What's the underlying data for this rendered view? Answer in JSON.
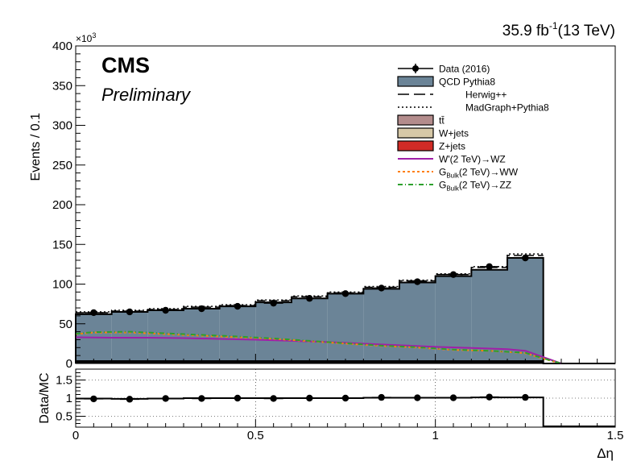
{
  "header": {
    "lumi_value": "35.9 fb",
    "lumi_exp": "-1",
    "energy": "(13 TeV)",
    "experiment": "CMS",
    "status": "Preliminary"
  },
  "chart_data": [
    {
      "type": "bar",
      "panel": "main",
      "title": "",
      "xlabel": "Δη",
      "ylabel": "Events / 0.1",
      "y_multiplier": "×10",
      "y_multiplier_exp": "3",
      "xlim": [
        0,
        1.5
      ],
      "ylim": [
        0,
        400000
      ],
      "x_ticks": [
        "0",
        "0.5",
        "1",
        "1.5"
      ],
      "y_ticks": [
        "0",
        "50",
        "100",
        "150",
        "200",
        "250",
        "300",
        "350",
        "400"
      ],
      "bin_edges": [
        0,
        0.1,
        0.2,
        0.3,
        0.4,
        0.5,
        0.6,
        0.7,
        0.8,
        0.9,
        1.0,
        1.1,
        1.2,
        1.3,
        1.4,
        1.5
      ],
      "legend_position": "top-right",
      "legend": [
        {
          "label": "Data (2016)",
          "style": "data"
        },
        {
          "label": "QCD Pythia8",
          "style": "fill",
          "color": "#6b8497"
        },
        {
          "label": "Herwig++",
          "style": "dash"
        },
        {
          "label": "MadGraph+Pythia8",
          "style": "dot"
        },
        {
          "label_main": "t",
          "label_sup": "t̄",
          "label": "tt̄",
          "style": "fill",
          "color": "#b38c8c"
        },
        {
          "label": "W+jets",
          "style": "fill",
          "color": "#d6c8a7"
        },
        {
          "label": "Z+jets",
          "style": "fill",
          "color": "#d12b26"
        },
        {
          "label": "W'(2 TeV)→WZ",
          "style": "line",
          "color": "#a01fa8"
        },
        {
          "label_main": "G",
          "label_sub": "Bulk",
          "label_rest": "(2 TeV)→WW",
          "label": "G_Bulk(2 TeV)→WW",
          "style": "dotted",
          "color": "#ff7f0e"
        },
        {
          "label_main": "G",
          "label_sub": "Bulk",
          "label_rest": "(2 TeV)→ZZ",
          "label": "G_Bulk(2 TeV)→ZZ",
          "style": "dashdot",
          "color": "#2ca02c"
        }
      ],
      "series": [
        {
          "name": "QCD Pythia8",
          "values": [
            62000,
            65000,
            67000,
            69000,
            72000,
            77000,
            82000,
            88000,
            94000,
            102000,
            110000,
            118000,
            133000,
            0,
            0
          ]
        },
        {
          "name": "Herwig++",
          "values": [
            64000,
            66000,
            68000,
            71000,
            73000,
            79000,
            84000,
            89000,
            96000,
            104000,
            112000,
            121000,
            136000,
            0,
            0
          ]
        },
        {
          "name": "MadGraph+Pythia8",
          "values": [
            65000,
            67000,
            69000,
            72000,
            74000,
            80000,
            85000,
            90000,
            97000,
            105000,
            113000,
            122000,
            138000,
            0,
            0
          ]
        },
        {
          "name": "Data (2016)",
          "x": [
            0.05,
            0.15,
            0.25,
            0.35,
            0.45,
            0.55,
            0.65,
            0.75,
            0.85,
            0.95,
            1.05,
            1.15,
            1.25
          ],
          "values": [
            64000,
            65000,
            67000,
            69000,
            72000,
            76000,
            82000,
            88000,
            95000,
            103000,
            112000,
            122000,
            133000
          ]
        }
      ],
      "signals": [
        {
          "name": "W'(2 TeV)→WZ",
          "x": [
            0.0,
            0.1,
            0.2,
            0.3,
            0.4,
            0.5,
            0.6,
            0.7,
            0.8,
            0.9,
            1.0,
            1.1,
            1.2,
            1.25,
            1.3,
            1.35
          ],
          "values": [
            33000,
            32500,
            32500,
            32000,
            31000,
            30000,
            28500,
            27000,
            25000,
            23000,
            21000,
            19500,
            18000,
            16000,
            8000,
            0
          ]
        },
        {
          "name": "G_Bulk(2 TeV)→WW",
          "x": [
            0.0,
            0.05,
            0.15,
            0.25,
            0.35,
            0.45,
            0.55,
            0.65,
            0.75,
            0.85,
            0.95,
            1.05,
            1.15,
            1.25,
            1.3,
            1.35
          ],
          "values": [
            37000,
            39000,
            39000,
            37000,
            35000,
            33000,
            31000,
            28000,
            25000,
            22000,
            20000,
            17000,
            16000,
            13000,
            6000,
            0
          ]
        },
        {
          "name": "G_Bulk(2 TeV)→ZZ",
          "x": [
            0.0,
            0.05,
            0.15,
            0.25,
            0.35,
            0.45,
            0.55,
            0.65,
            0.75,
            0.85,
            0.95,
            1.05,
            1.15,
            1.25,
            1.3,
            1.35
          ],
          "values": [
            37500,
            39500,
            40000,
            38000,
            36000,
            34000,
            31500,
            28500,
            25500,
            22500,
            20500,
            17500,
            16000,
            13500,
            6500,
            0
          ]
        }
      ]
    },
    {
      "type": "scatter",
      "panel": "ratio",
      "title": "",
      "xlabel": "Δη",
      "ylabel": "Data/MC",
      "xlim": [
        0,
        1.5
      ],
      "ylim": [
        0.2,
        1.8
      ],
      "x_ticks": [
        "0",
        "0.5",
        "1",
        "1.5"
      ],
      "y_ticks": [
        "0.5",
        "1",
        "1.5"
      ],
      "grid": true,
      "series": [
        {
          "name": "Data/MC",
          "x": [
            0.05,
            0.15,
            0.25,
            0.35,
            0.45,
            0.55,
            0.65,
            0.75,
            0.85,
            0.95,
            1.05,
            1.15,
            1.25
          ],
          "values": [
            0.98,
            0.97,
            0.99,
            0.99,
            1.0,
            0.99,
            1.0,
            1.0,
            1.02,
            1.01,
            1.01,
            1.03,
            1.02
          ]
        },
        {
          "name": "MC ratio",
          "bin_edges": [
            0,
            0.1,
            0.2,
            0.3,
            0.4,
            0.5,
            0.6,
            0.7,
            0.8,
            0.9,
            1.0,
            1.1,
            1.2,
            1.3
          ],
          "values": [
            0.99,
            0.98,
            0.99,
            1.0,
            1.0,
            1.0,
            1.0,
            1.0,
            1.01,
            1.01,
            1.01,
            1.02,
            1.02
          ]
        }
      ]
    }
  ]
}
